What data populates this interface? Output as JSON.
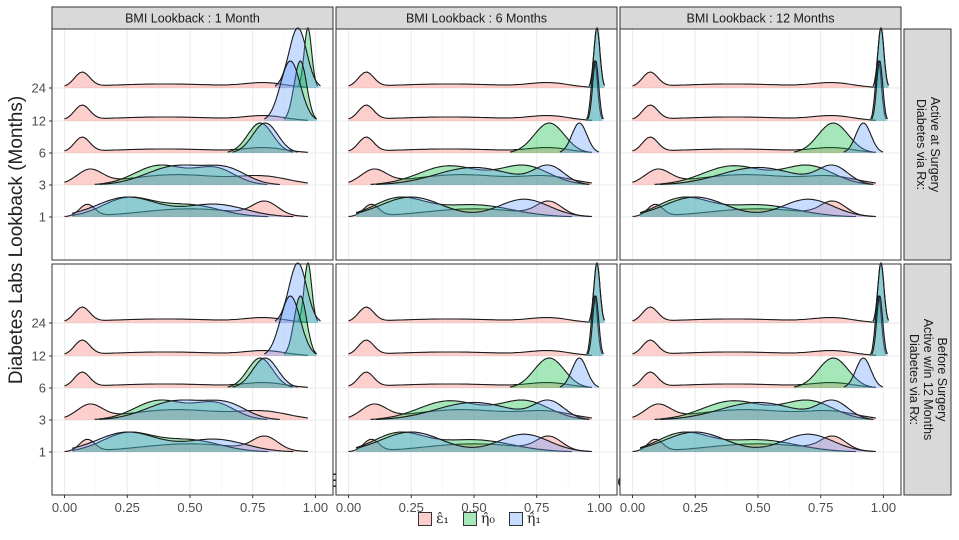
{
  "chart_data": {
    "type": "ridgeline-density",
    "ylabel": "Diabetes Labs Lookback (Months)",
    "xlabel": "Estimated Nuisance Function Value",
    "x_ticks": [
      "0.00",
      "0.25",
      "0.50",
      "0.75",
      "1.00"
    ],
    "xlim": [
      -0.05,
      1.07
    ],
    "y_levels": [
      "1",
      "3",
      "6",
      "12",
      "24"
    ],
    "col_strips": [
      "BMI Lookback : 1 Month",
      "BMI Lookback : 6 Months",
      "BMI Lookback : 12 Months"
    ],
    "row_strips": [
      [
        "Diabetes via Rx:",
        "Active at Surgery"
      ],
      [
        "Diabetes via Rx:",
        "Active w/in 12 Months",
        "Before Surgery"
      ]
    ],
    "legend": [
      {
        "key": "eps1",
        "label": "ε̂₁",
        "color": "#F8766D"
      },
      {
        "key": "eta0",
        "label": "η̂₀",
        "color": "#00BA38"
      },
      {
        "key": "eta1",
        "label": "η̂₁",
        "color": "#619CFF"
      }
    ],
    "series_color_alpha": 0.35,
    "densities": {
      "eps1": {
        "1": [
          [
            0.09,
            0.03,
            0.8
          ],
          [
            0.5,
            0.2,
            0.55
          ],
          [
            0.8,
            0.05,
            0.9
          ]
        ],
        "3": [
          [
            0.1,
            0.05,
            0.6
          ],
          [
            0.45,
            0.2,
            0.45
          ],
          [
            0.8,
            0.1,
            0.3
          ]
        ],
        "6": [
          [
            0.07,
            0.03,
            1.0
          ],
          [
            0.4,
            0.25,
            0.28
          ],
          [
            0.8,
            0.08,
            0.3
          ]
        ],
        "12": [
          [
            0.07,
            0.03,
            1.0
          ],
          [
            0.4,
            0.25,
            0.28
          ],
          [
            0.8,
            0.08,
            0.3
          ]
        ],
        "24": [
          [
            0.07,
            0.03,
            1.0
          ],
          [
            0.4,
            0.25,
            0.28
          ],
          [
            0.8,
            0.08,
            0.3
          ]
        ]
      },
      "eta0": {
        "1-BMI1": [
          [
            0.25,
            0.1,
            0.7
          ],
          [
            0.5,
            0.12,
            0.45
          ]
        ],
        "3-BMI1": [
          [
            0.38,
            0.1,
            0.6
          ],
          [
            0.6,
            0.08,
            0.5
          ]
        ],
        "6-BMI1": [
          [
            0.78,
            0.05,
            0.9
          ]
        ],
        "12-BMI1": [
          [
            0.94,
            0.025,
            1.3
          ]
        ],
        "24-BMI1": [
          [
            0.97,
            0.015,
            1.6
          ]
        ],
        "1-BMI6": [
          [
            0.2,
            0.1,
            0.6
          ],
          [
            0.5,
            0.15,
            0.4
          ]
        ],
        "3-BMI6": [
          [
            0.4,
            0.12,
            0.35
          ],
          [
            0.7,
            0.1,
            0.35
          ]
        ],
        "6-BMI6": [
          [
            0.8,
            0.06,
            0.85
          ]
        ],
        "12-BMI6": [
          [
            0.98,
            0.012,
            1.6
          ]
        ],
        "24-BMI6": [
          [
            0.99,
            0.012,
            1.7
          ]
        ]
      },
      "eta1": {
        "1-BMI1": [
          [
            0.25,
            0.12,
            0.55
          ],
          [
            0.6,
            0.12,
            0.35
          ]
        ],
        "3-BMI1": [
          [
            0.45,
            0.12,
            0.5
          ],
          [
            0.65,
            0.08,
            0.35
          ]
        ],
        "6-BMI1": [
          [
            0.8,
            0.05,
            0.85
          ]
        ],
        "12-BMI1": [
          [
            0.9,
            0.04,
            1.1
          ]
        ],
        "24-BMI1": [
          [
            0.93,
            0.035,
            1.2
          ]
        ],
        "1-BMI6": [
          [
            0.25,
            0.12,
            0.45
          ],
          [
            0.7,
            0.1,
            0.4
          ]
        ],
        "3-BMI6": [
          [
            0.5,
            0.15,
            0.3
          ],
          [
            0.8,
            0.06,
            0.3
          ]
        ],
        "6-BMI6": [
          [
            0.92,
            0.03,
            1.0
          ]
        ],
        "12-BMI6": [
          [
            0.985,
            0.012,
            1.5
          ]
        ],
        "24-BMI6": [
          [
            0.99,
            0.012,
            1.7
          ]
        ]
      }
    }
  }
}
